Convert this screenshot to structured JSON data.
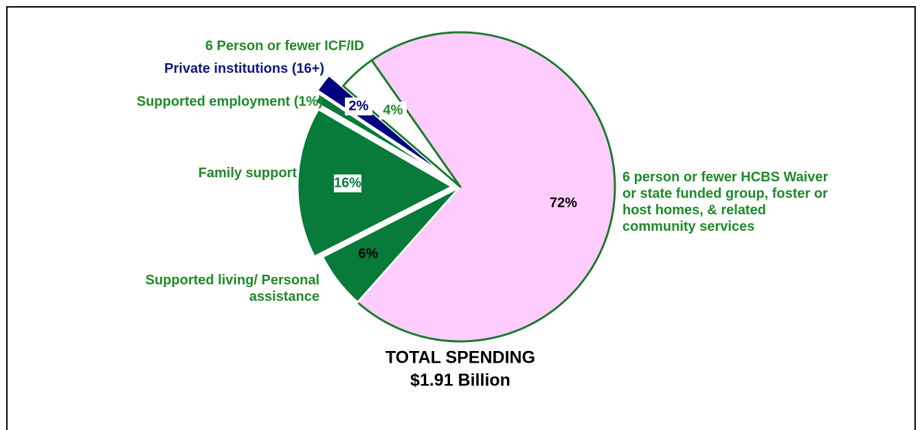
{
  "chart_data": {
    "type": "pie",
    "title": "TOTAL SPENDING",
    "subtitle": "$1.91 Billion",
    "categories": [
      "6 person or fewer HCBS Waiver or state funded group, foster or host homes, & related community services",
      "Supported living/ Personal assistance",
      "Family support",
      "Supported employment (1%)",
      "Private institutions (16+)",
      "6 Person or fewer ICF/ID"
    ],
    "values": [
      72,
      6,
      16,
      1,
      2,
      4
    ],
    "value_labels": [
      "72%",
      "6%",
      "16%",
      null,
      "2%",
      "4%"
    ],
    "colors": [
      "#ffccff",
      "#087a3a",
      "#087a3a",
      "#087a3a",
      "#000080",
      "#ffffff"
    ]
  }
}
